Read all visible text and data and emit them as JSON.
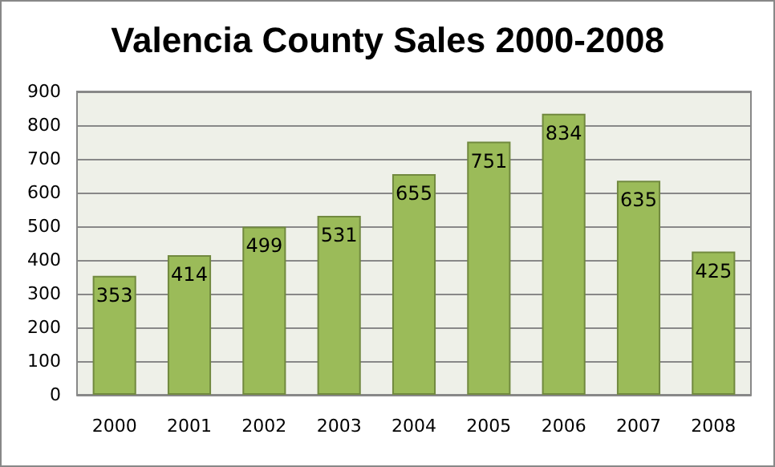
{
  "chart_data": {
    "type": "bar",
    "title": "Valencia County Sales 2000-2008",
    "categories": [
      "2000",
      "2001",
      "2002",
      "2003",
      "2004",
      "2005",
      "2006",
      "2007",
      "2008"
    ],
    "values": [
      353,
      414,
      499,
      531,
      655,
      751,
      834,
      635,
      425
    ],
    "color": "#9bbb59",
    "ylim": [
      0,
      900
    ],
    "yticks": [
      0,
      100,
      200,
      300,
      400,
      500,
      600,
      700,
      800,
      900
    ],
    "grid": "y",
    "data_labels": true
  }
}
